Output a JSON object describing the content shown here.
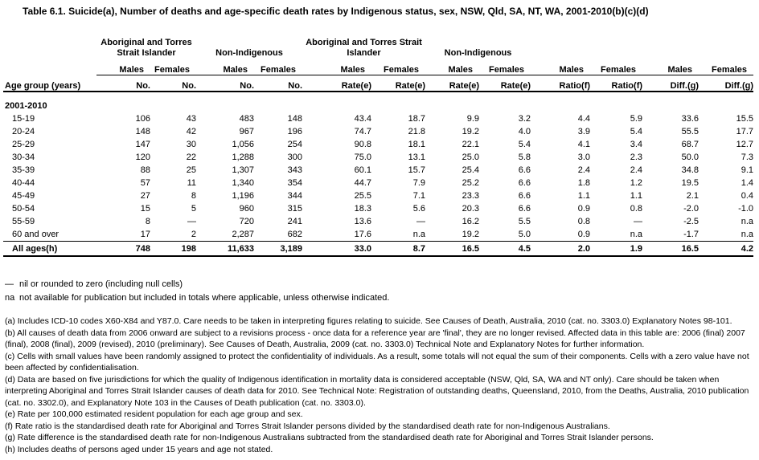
{
  "title": "Table 6.1. Suicide(a), Number of deaths and age-specific death rates by Indigenous status, sex, NSW, Qld, SA, NT, WA, 2001-2010(b)(c)(d)",
  "table": {
    "row_label_header": "Age group (years)",
    "group_headers": [
      {
        "label": "Aboriginal and Torres Strait Islander"
      },
      {
        "label": "Non-Indigenous"
      },
      {
        "label": "Aboriginal and Torres Strait Islander"
      },
      {
        "label": "Non-Indigenous"
      },
      {
        "label": ""
      },
      {
        "label": ""
      }
    ],
    "sex_headers": [
      "Males",
      "Females",
      "Males",
      "Females",
      "Males",
      "Females",
      "Males",
      "Females",
      "Males",
      "Females",
      "Males",
      "Females"
    ],
    "unit_headers": [
      "No.",
      "No.",
      "No.",
      "No.",
      "Rate(e)",
      "Rate(e)",
      "Rate(e)",
      "Rate(e)",
      "Ratio(f)",
      "Ratio(f)",
      "Diff.(g)",
      "Diff.(g)"
    ],
    "section_label": "2001-2010",
    "rows": [
      {
        "label": "15-19",
        "values": [
          "106",
          "43",
          "483",
          "148",
          "43.4",
          "18.7",
          "9.9",
          "3.2",
          "4.4",
          "5.9",
          "33.6",
          "15.5"
        ]
      },
      {
        "label": "20-24",
        "values": [
          "148",
          "42",
          "967",
          "196",
          "74.7",
          "21.8",
          "19.2",
          "4.0",
          "3.9",
          "5.4",
          "55.5",
          "17.7"
        ]
      },
      {
        "label": "25-29",
        "values": [
          "147",
          "30",
          "1,056",
          "254",
          "90.8",
          "18.1",
          "22.1",
          "5.4",
          "4.1",
          "3.4",
          "68.7",
          "12.7"
        ]
      },
      {
        "label": "30-34",
        "values": [
          "120",
          "22",
          "1,288",
          "300",
          "75.0",
          "13.1",
          "25.0",
          "5.8",
          "3.0",
          "2.3",
          "50.0",
          "7.3"
        ]
      },
      {
        "label": "35-39",
        "values": [
          "88",
          "25",
          "1,307",
          "343",
          "60.1",
          "15.7",
          "25.4",
          "6.6",
          "2.4",
          "2.4",
          "34.8",
          "9.1"
        ]
      },
      {
        "label": "40-44",
        "values": [
          "57",
          "11",
          "1,340",
          "354",
          "44.7",
          "7.9",
          "25.2",
          "6.6",
          "1.8",
          "1.2",
          "19.5",
          "1.4"
        ]
      },
      {
        "label": "45-49",
        "values": [
          "27",
          "8",
          "1,196",
          "344",
          "25.5",
          "7.1",
          "23.3",
          "6.6",
          "1.1",
          "1.1",
          "2.1",
          "0.4"
        ]
      },
      {
        "label": "50-54",
        "values": [
          "15",
          "5",
          "960",
          "315",
          "18.3",
          "5.6",
          "20.3",
          "6.6",
          "0.9",
          "0.8",
          "-2.0",
          "-1.0"
        ]
      },
      {
        "label": "55-59",
        "values": [
          "8",
          "—",
          "720",
          "241",
          "13.6",
          "—",
          "16.2",
          "5.5",
          "0.8",
          "—",
          "-2.5",
          "n.a"
        ]
      },
      {
        "label": "60 and over",
        "values": [
          "17",
          "2",
          "2,287",
          "682",
          "17.6",
          "n.a",
          "19.2",
          "5.0",
          "0.9",
          "n.a",
          "-1.7",
          "n.a"
        ]
      }
    ],
    "total_row": {
      "label": "All ages(h)",
      "values": [
        "748",
        "198",
        "11,633",
        "3,189",
        "33.0",
        "8.7",
        "16.5",
        "4.5",
        "2.0",
        "1.9",
        "16.5",
        "4.2"
      ]
    }
  },
  "legend": [
    {
      "symbol": "—",
      "text": "nil or rounded to zero (including null cells)"
    },
    {
      "symbol": "na",
      "text": "not available for publication but included in totals where applicable, unless otherwise indicated."
    }
  ],
  "footnotes": [
    "(a) Includes ICD-10 codes X60-X84 and Y87.0. Care needs to be taken in interpreting figures relating to suicide. See Causes of Death, Australia, 2010 (cat. no. 3303.0) Explanatory Notes 98-101.",
    "(b) All causes of death data from 2006 onward are subject to a revisions process - once data for a reference year are 'final', they are no longer revised. Affected data in this table are: 2006 (final) 2007 (final), 2008 (final), 2009 (revised), 2010 (preliminary). See Causes of Death, Australia, 2009 (cat. no. 3303.0) Technical Note and Explanatory Notes for further information.",
    "(c) Cells with small values have been randomly assigned to protect the confidentiality of individuals. As a result, some totals will not equal the sum of their components. Cells with a zero value have not been affected by confidentialisation.",
    "(d) Data are based on five jurisdictions for which the quality of Indigenous identification in mortality data is considered acceptable (NSW, Qld, SA, WA and NT only). Care should be taken when interpreting Aboriginal and Torres Strait Islander causes of death data for 2010. See Technical Note: Registration of outstanding deaths, Queensland, 2010, from the Deaths, Australia, 2010 publication (cat. no. 3302.0), and Explanatory Note 103 in the Causes of Death publication (cat. no. 3303.0).",
    "(e) Rate per 100,000 estimated resident population for each age group and sex.",
    "(f) Rate ratio is the standardised death rate for Aboriginal and Torres Strait Islander persons divided by the standardised death rate for non-Indigenous Australians.",
    "(g) Rate difference is the standardised death rate for non-Indigenous Australians subtracted from the standardised death rate for Aboriginal and Torres Strait Islander persons.",
    "(h) Includes deaths of persons aged under 15 years and age not stated."
  ]
}
